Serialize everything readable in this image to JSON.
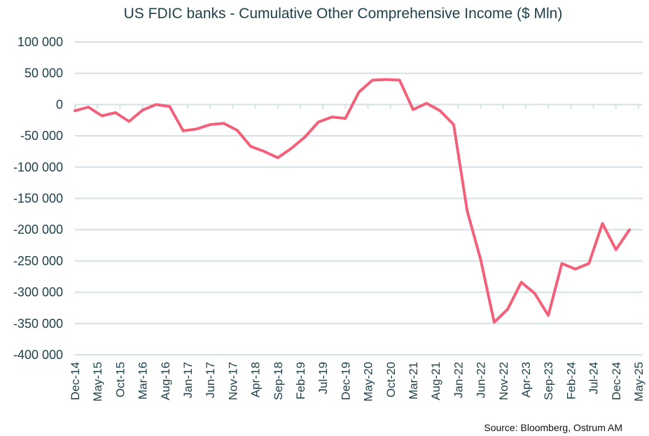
{
  "chart_data": {
    "type": "line",
    "title": "US FDIC banks - Cumulative Other Comprehensive Income ($ Mln)",
    "xlabel": "",
    "ylabel": "",
    "ylim": [
      -400000,
      100000
    ],
    "yticks": [
      100000,
      50000,
      0,
      -50000,
      -100000,
      -150000,
      -200000,
      -250000,
      -300000,
      -350000,
      -400000
    ],
    "ytick_labels": [
      "100 000",
      "50 000",
      "0",
      "-50 000",
      "-100 000",
      "-150 000",
      "-200 000",
      "-250 000",
      "-300 000",
      "-350 000",
      "-400 000"
    ],
    "xtick_labels": [
      "Dec-14",
      "May-15",
      "Oct-15",
      "Mar-16",
      "Aug-16",
      "Jan-17",
      "Jun-17",
      "Nov-17",
      "Apr-18",
      "Sep-18",
      "Feb-19",
      "Jul-19",
      "Dec-19",
      "May-20",
      "Oct-20",
      "Mar-21",
      "Aug-21",
      "Jan-22",
      "Jun-22",
      "Nov-22",
      "Apr-23",
      "Sep-23",
      "Feb-24",
      "Jul-24",
      "Dec-24",
      "May-25"
    ],
    "grid": true,
    "line_color": "#f2607a",
    "series": [
      {
        "x": [
          "Dec-14",
          "Mar-15",
          "Jun-15",
          "Sep-15",
          "Dec-15",
          "Mar-16",
          "Jun-16",
          "Sep-16",
          "Dec-16",
          "Mar-17",
          "Jun-17",
          "Sep-17",
          "Dec-17",
          "Mar-18",
          "Jun-18",
          "Sep-18",
          "Dec-18",
          "Mar-19",
          "Jun-19",
          "Sep-19",
          "Dec-19",
          "Mar-20",
          "Jun-20",
          "Sep-20",
          "Dec-20",
          "Mar-21",
          "Jun-21",
          "Sep-21",
          "Dec-21",
          "Mar-22",
          "Jun-22",
          "Sep-22",
          "Dec-22",
          "Mar-23",
          "Jun-23",
          "Sep-23",
          "Dec-23",
          "Mar-24",
          "Jun-24",
          "Sep-24",
          "Dec-24",
          "Mar-25"
        ],
        "values": [
          -10000,
          -4000,
          -18000,
          -13000,
          -27000,
          -9000,
          0,
          -3000,
          -42000,
          -39000,
          -32000,
          -30000,
          -41000,
          -67000,
          -75000,
          -85000,
          -70000,
          -52000,
          -28000,
          -20000,
          -22000,
          20000,
          39000,
          40000,
          39000,
          -8000,
          2000,
          -10000,
          -32000,
          -170000,
          -248000,
          -348000,
          -327000,
          -284000,
          -302000,
          -337000,
          -254000,
          -263000,
          -254000,
          -190000,
          -232000,
          -200000
        ]
      }
    ]
  },
  "source": "Source: Bloomberg, Ostrum AM"
}
